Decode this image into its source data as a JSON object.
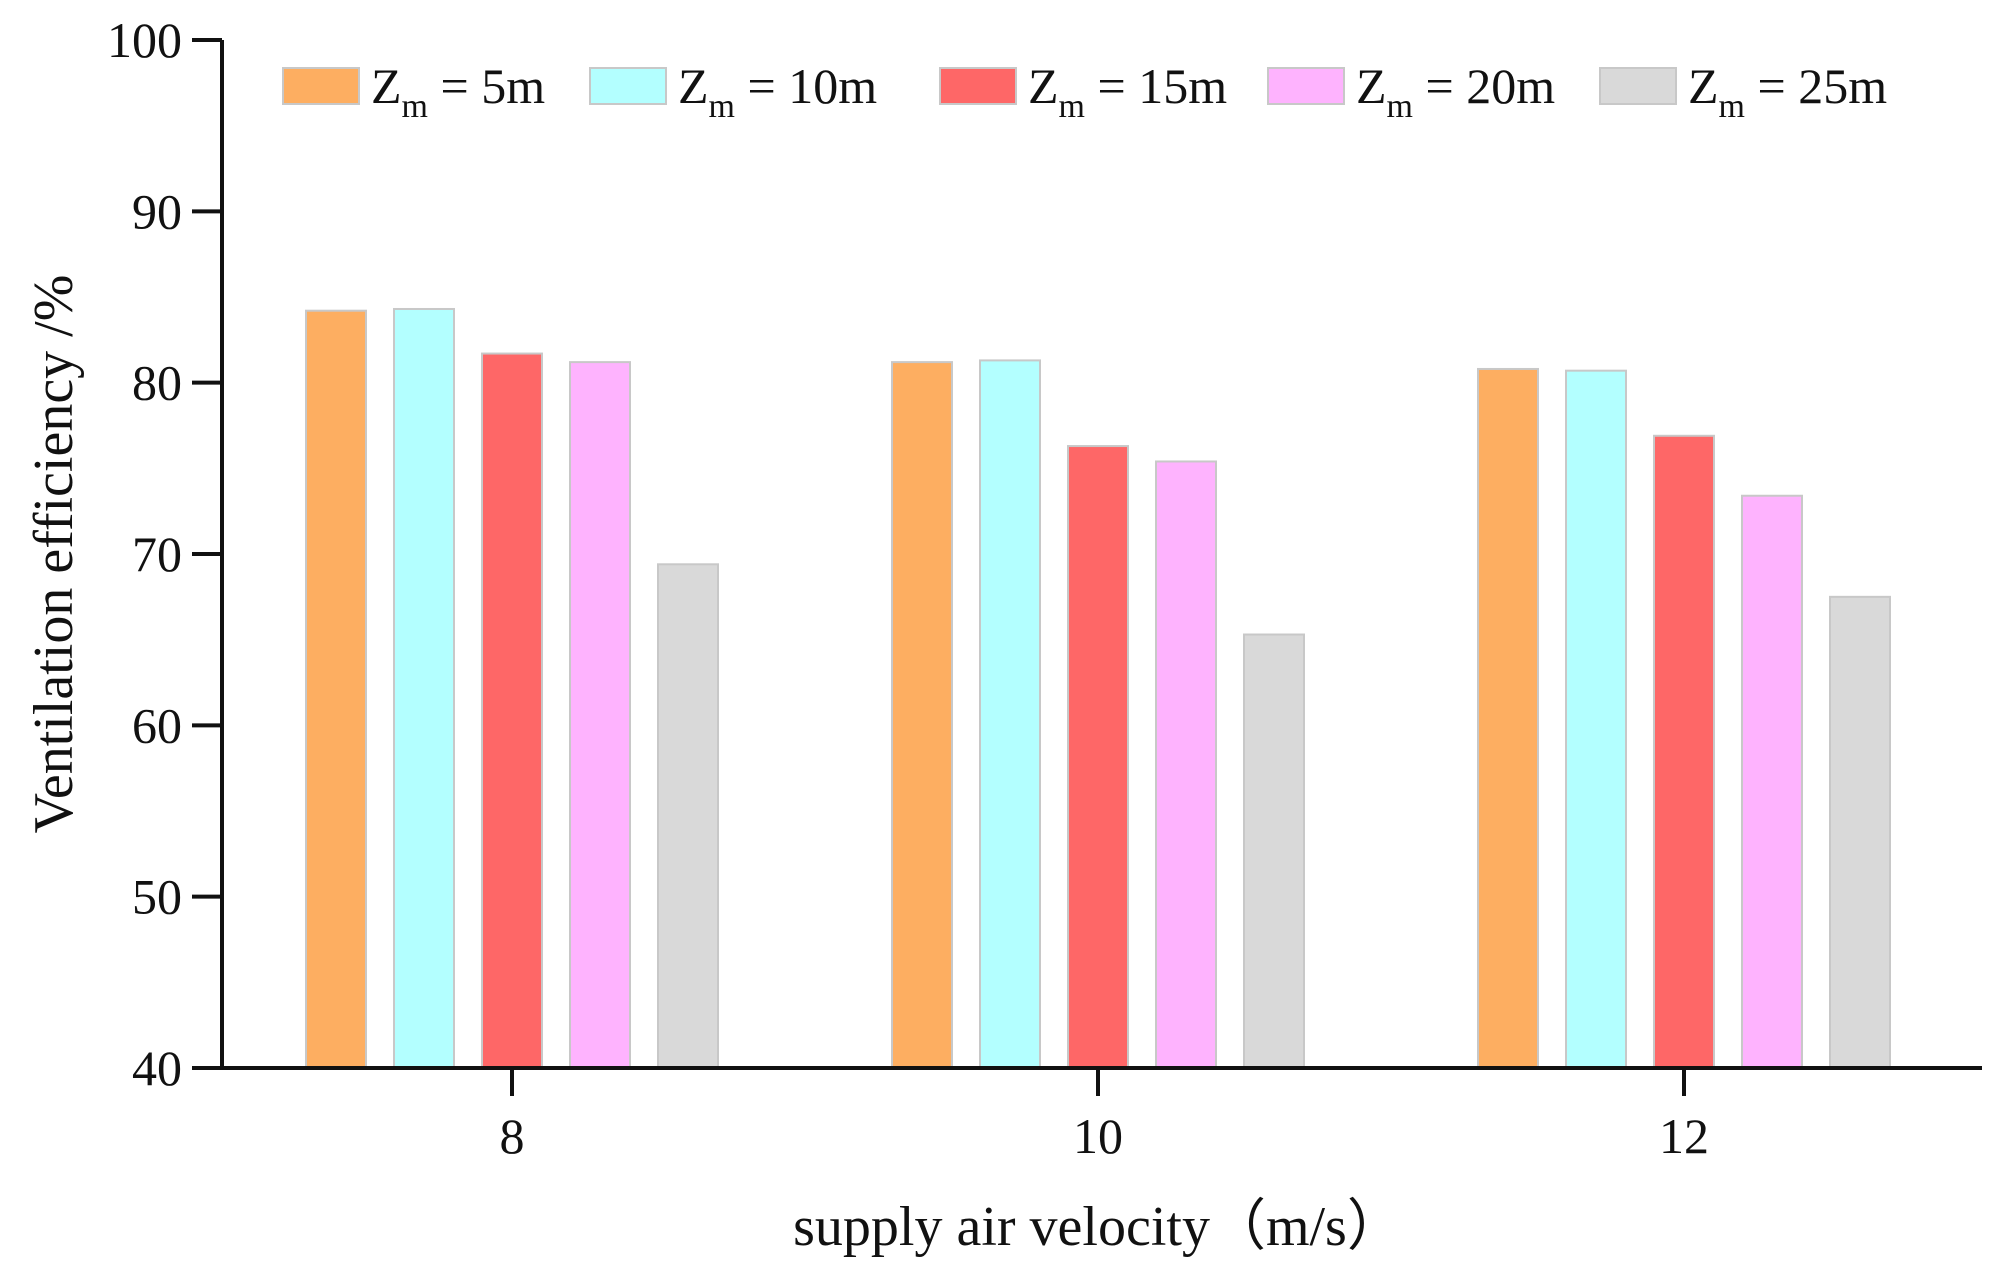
{
  "chart_data": {
    "type": "bar",
    "title": "",
    "xlabel": "supply air velocity（m/s）",
    "ylabel": "Ventilation efficiency /%",
    "categories": [
      "8",
      "10",
      "12"
    ],
    "ylim": [
      40,
      100
    ],
    "yticks": [
      40,
      50,
      60,
      70,
      80,
      90,
      100
    ],
    "legend_position": "top",
    "series": [
      {
        "name": "Zm = 5m",
        "label_main": "Z",
        "label_sub": "m",
        "label_rest": " = 5m",
        "color": "#FDAE61",
        "values": [
          84.2,
          81.2,
          80.8
        ]
      },
      {
        "name": "Zm = 10m",
        "label_main": "Z",
        "label_sub": "m",
        "label_rest": " = 10m",
        "color": "#B3FFFF",
        "values": [
          84.3,
          81.3,
          80.7
        ]
      },
      {
        "name": "Zm = 15m",
        "label_main": "Z",
        "label_sub": "m",
        "label_rest": " = 15m",
        "color": "#FE6767",
        "values": [
          81.7,
          76.3,
          76.9
        ]
      },
      {
        "name": "Zm = 20m",
        "label_main": "Z",
        "label_sub": "m",
        "label_rest": " = 20m",
        "color": "#FEB3FE",
        "values": [
          81.2,
          75.4,
          73.4
        ]
      },
      {
        "name": "Zm = 25m",
        "label_main": "Z",
        "label_sub": "m",
        "label_rest": " = 25m",
        "color": "#D9D9D9",
        "values": [
          69.4,
          65.3,
          67.5
        ]
      }
    ]
  }
}
